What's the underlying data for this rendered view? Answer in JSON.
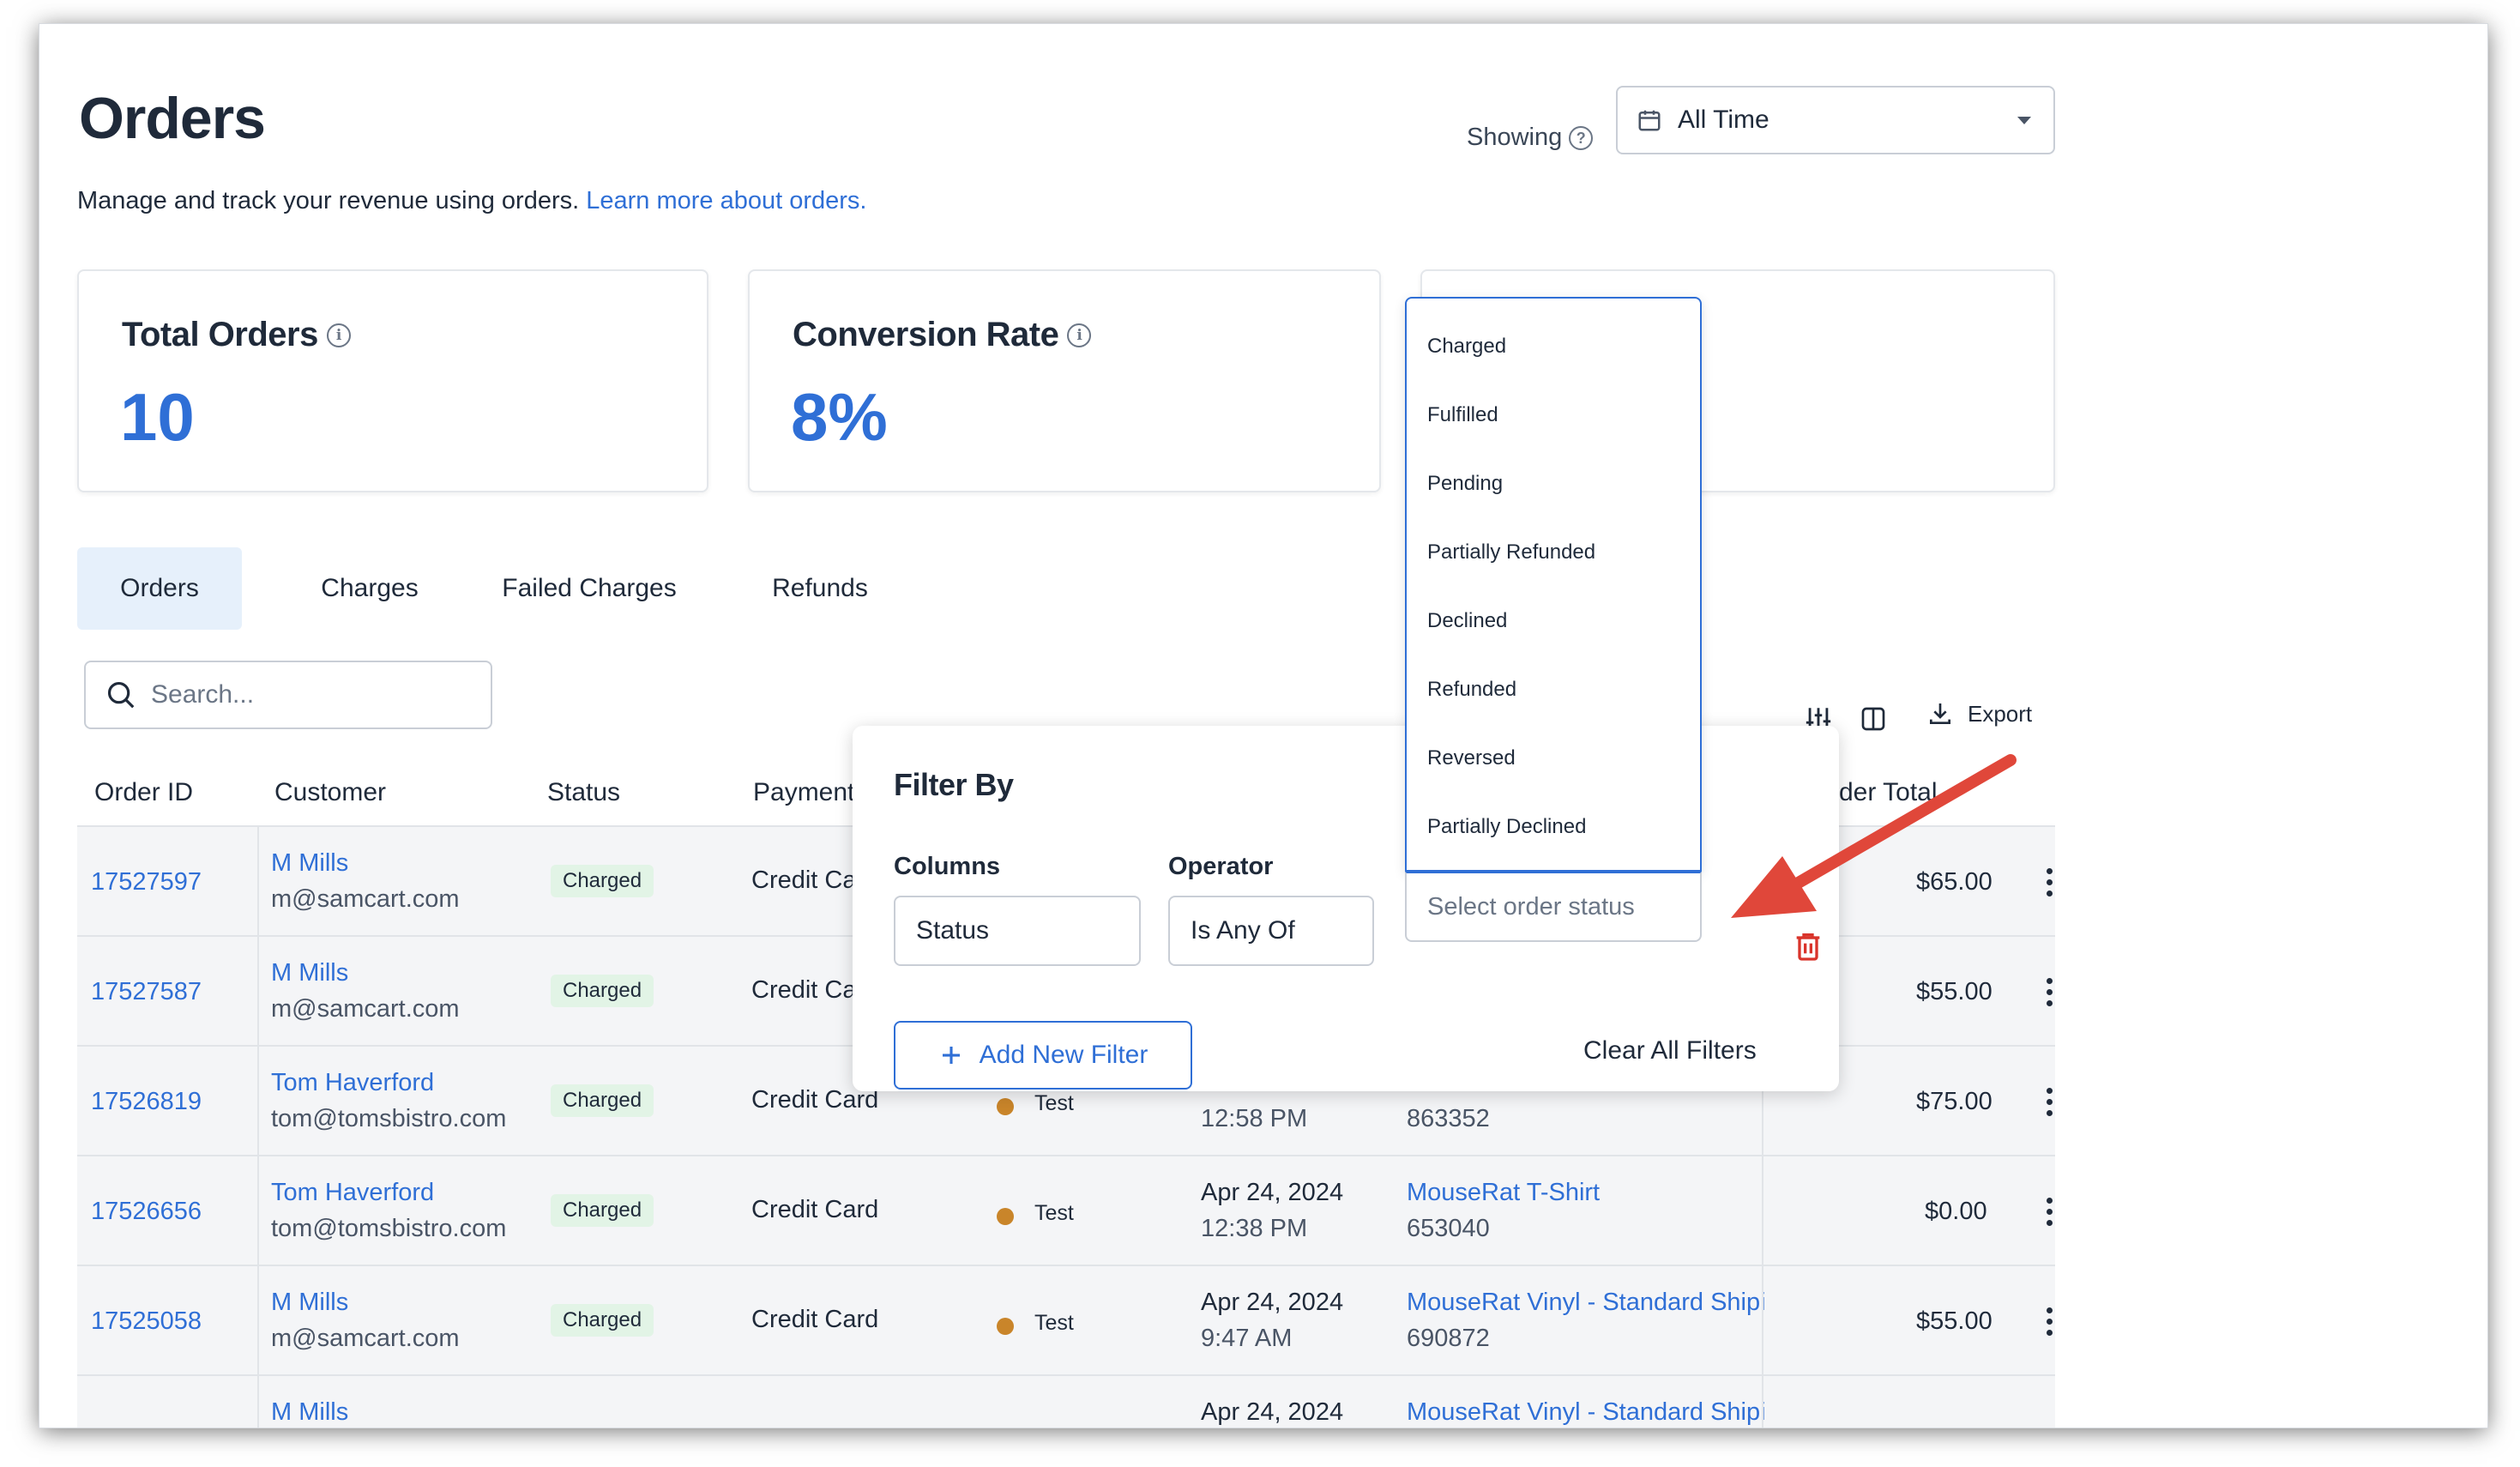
{
  "header": {
    "title": "Orders",
    "subtitle": "Manage and track your revenue using orders.",
    "learn_more": "Learn more about orders.",
    "showing_label": "Showing",
    "date_range": "All Time"
  },
  "stats": [
    {
      "label": "Total Orders",
      "value": "10"
    },
    {
      "label": "Conversion Rate",
      "value": "8%"
    }
  ],
  "tabs": [
    "Orders",
    "Charges",
    "Failed Charges",
    "Refunds"
  ],
  "search": {
    "placeholder": "Search..."
  },
  "toolbar": {
    "export_label": "Export"
  },
  "table": {
    "columns": [
      "Order ID",
      "Customer",
      "Status",
      "Payment",
      "rder Total"
    ],
    "rows": [
      {
        "id": "17527597",
        "name": "M Mills",
        "email": "m@samcart.com",
        "status": "Charged",
        "payment": "Credit Ca",
        "mode": "",
        "date": "",
        "time": "",
        "product": "",
        "product_id": "",
        "total": "$65.00"
      },
      {
        "id": "17527587",
        "name": "M Mills",
        "email": "m@samcart.com",
        "status": "Charged",
        "payment": "Credit Ca",
        "mode": "",
        "date": "",
        "time": "",
        "product": "",
        "product_id": "",
        "total": "$55.00"
      },
      {
        "id": "17526819",
        "name": "Tom Haverford",
        "email": "tom@tomsbistro.com",
        "status": "Charged",
        "payment": "Credit Card",
        "mode": "Test",
        "date": "",
        "time": "12:58 PM",
        "product": "",
        "product_id": "863352",
        "total": "$75.00"
      },
      {
        "id": "17526656",
        "name": "Tom Haverford",
        "email": "tom@tomsbistro.com",
        "status": "Charged",
        "payment": "Credit Card",
        "mode": "Test",
        "date": "Apr 24, 2024",
        "time": "12:38 PM",
        "product": "MouseRat T-Shirt",
        "product_id": "653040",
        "total": "$0.00"
      },
      {
        "id": "17525058",
        "name": "M Mills",
        "email": "m@samcart.com",
        "status": "Charged",
        "payment": "Credit Card",
        "mode": "Test",
        "date": "Apr 24, 2024",
        "time": "9:47 AM",
        "product": "MouseRat Vinyl - Standard Shipi",
        "product_id": "690872",
        "total": "$55.00"
      },
      {
        "id": "",
        "name": "M Mills",
        "email": "",
        "status": "",
        "payment": "",
        "mode": "",
        "date": "Apr 24, 2024",
        "time": "",
        "product": "MouseRat Vinyl - Standard Shipi",
        "product_id": "",
        "total": ""
      }
    ]
  },
  "filter": {
    "title": "Filter By",
    "columns_label": "Columns",
    "operator_label": "Operator",
    "column_value": "Status",
    "operator_value": "Is Any Of",
    "value_placeholder": "Select order status",
    "add_filter": "Add New Filter",
    "clear_all": "Clear All Filters"
  },
  "status_options": [
    "Charged",
    "Fulfilled",
    "Pending",
    "Partially Refunded",
    "Declined",
    "Refunded",
    "Reversed",
    "Partially Declined"
  ],
  "colors": {
    "accent": "#2f6fd6",
    "danger": "#d9342b",
    "annotation_arrow": "#e0473a",
    "badge_bg": "#e2f4e6",
    "test_dot": "#c9852a"
  }
}
